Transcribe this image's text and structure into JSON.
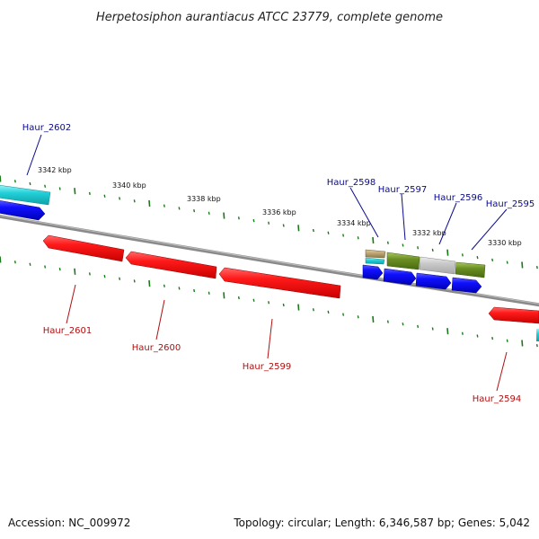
{
  "title": "Herpetosiphon aurantiacus ATCC 23779, complete genome",
  "footer": {
    "accession": "Accession: NC_009972",
    "summary": "Topology: circular; Length: 6,346,587 bp; Genes: 5,042"
  },
  "colors": {
    "backbone": "#8a8a8a",
    "forward_gene": "#0a0aee",
    "reverse_gene": "#ee1111",
    "feature_cyan": "#22d0d8",
    "feature_olive": "#6b8e23",
    "feature_grey": "#c8c8c8",
    "feature_tan": "#b8a070",
    "tick": "#1a7a1a",
    "label_forward": "#0a0a8c",
    "label_reverse": "#b01010"
  },
  "ruler_labels": [
    "3342 kbp",
    "3340 kbp",
    "3338 kbp",
    "3336 kbp",
    "3334 kbp",
    "3332 kbp",
    "3330 kbp"
  ],
  "genes_forward": [
    "Haur_2602",
    "Haur_2598",
    "Haur_2597",
    "Haur_2596",
    "Haur_2595"
  ],
  "genes_reverse": [
    "Haur_2601",
    "Haur_2600",
    "Haur_2599",
    "Haur_2594"
  ]
}
